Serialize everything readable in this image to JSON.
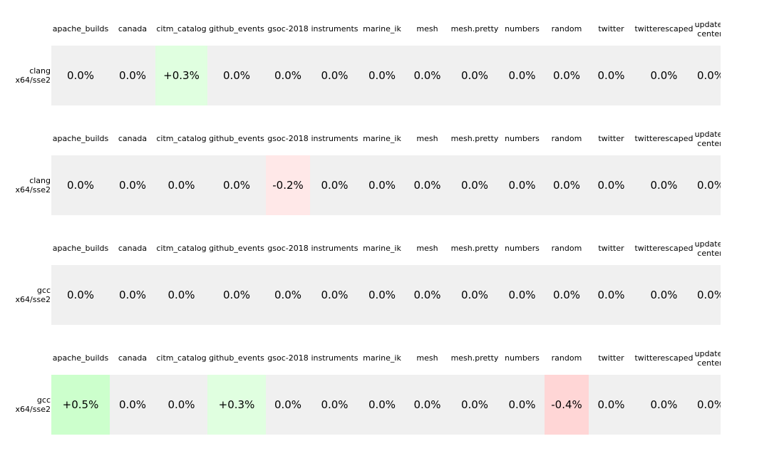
{
  "chart_data": {
    "type": "table",
    "columns": [
      "apache_builds",
      "canada",
      "citm_catalog",
      "github_events",
      "gsoc-2018",
      "instruments",
      "marine_ik",
      "mesh",
      "mesh.pretty",
      "numbers",
      "random",
      "twitter",
      "twitterescaped",
      "update-center"
    ],
    "rows": [
      {
        "label": "clang\nx64/sse2",
        "values": [
          "0.0%",
          "0.0%",
          "+0.3%",
          "0.0%",
          "0.0%",
          "0.0%",
          "0.0%",
          "0.0%",
          "0.0%",
          "0.0%",
          "0.0%",
          "0.0%",
          "0.0%",
          "0.0%"
        ]
      },
      {
        "label": "clang\nx64/sse2",
        "values": [
          "0.0%",
          "0.0%",
          "0.0%",
          "0.0%",
          "-0.2%",
          "0.0%",
          "0.0%",
          "0.0%",
          "0.0%",
          "0.0%",
          "0.0%",
          "0.0%",
          "0.0%",
          "0.0%"
        ]
      },
      {
        "label": "gcc\nx64/sse2",
        "values": [
          "0.0%",
          "0.0%",
          "0.0%",
          "0.0%",
          "0.0%",
          "0.0%",
          "0.0%",
          "0.0%",
          "0.0%",
          "0.0%",
          "0.0%",
          "0.0%",
          "0.0%",
          "0.0%"
        ]
      },
      {
        "label": "gcc\nx64/sse2",
        "values": [
          "+0.5%",
          "0.0%",
          "0.0%",
          "+0.3%",
          "0.0%",
          "0.0%",
          "0.0%",
          "0.0%",
          "0.0%",
          "0.0%",
          "-0.4%",
          "0.0%",
          "0.0%",
          "0.0%"
        ]
      }
    ],
    "colors": {
      "neutral": "#f0f0f0",
      "improve_small": "#e0ffe0",
      "improve_large": "#ccffcc",
      "regress_small": "#ffe8e8",
      "regress_large": "#ffd6d6"
    }
  }
}
